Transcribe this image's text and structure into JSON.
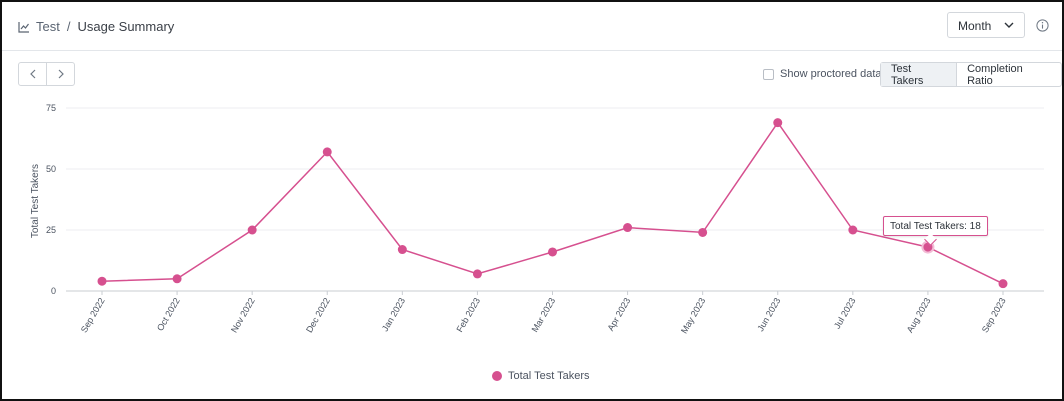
{
  "breadcrumb": {
    "icon": "line-chart-icon",
    "root": "Test",
    "separator": "/",
    "current": "Usage Summary"
  },
  "period_select": {
    "value": "Month",
    "icon": "chevron-down-icon"
  },
  "info": {
    "icon": "info-icon"
  },
  "navigation": {
    "prev_icon": "chevron-left-icon",
    "next_icon": "chevron-right-icon"
  },
  "proctored": {
    "label": "Show proctored data",
    "checked": false
  },
  "view_toggle": [
    {
      "label": "Test Takers",
      "active": true
    },
    {
      "label": "Completion Ratio",
      "active": false
    }
  ],
  "tooltip": {
    "text": "Total Test Takers: 18",
    "index": 11
  },
  "colors": {
    "series": "#d6508f",
    "grid": "#eceef1",
    "axis": "#c9cdd2"
  },
  "chart_data": {
    "type": "line",
    "ylabel": "Total Test Takers",
    "ylim": [
      0,
      75
    ],
    "yticks": [
      0,
      25,
      50,
      75
    ],
    "grid": true,
    "legend_position": "bottom",
    "categories": [
      "Sep 2022",
      "Oct 2022",
      "Nov 2022",
      "Dec 2022",
      "Jan 2023",
      "Feb 2023",
      "Mar 2023",
      "Apr 2023",
      "May 2023",
      "Jun 2023",
      "Jul 2023",
      "Aug 2023",
      "Sep 2023"
    ],
    "series": [
      {
        "name": "Total Test Takers",
        "values": [
          4,
          5,
          25,
          57,
          17,
          7,
          16,
          26,
          24,
          69,
          25,
          18,
          3
        ]
      }
    ]
  }
}
